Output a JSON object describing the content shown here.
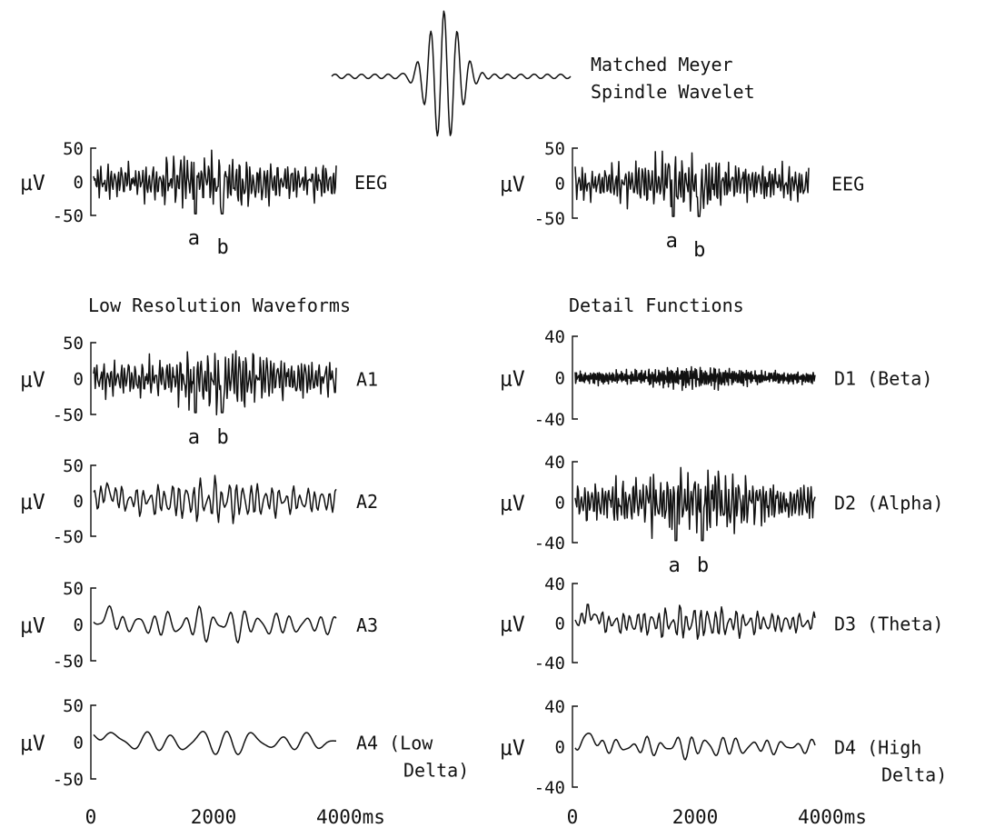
{
  "wavelet": {
    "caption_line1": "Matched Meyer",
    "caption_line2": "Spindle Wavelet"
  },
  "section_titles": {
    "left": "Low Resolution Waveforms",
    "right": "Detail Functions"
  },
  "unit_label": "μV",
  "marker_labels": [
    "a",
    "b"
  ],
  "x_axis": {
    "unit": "ms",
    "ticks": [
      "0",
      "2000",
      "4000ms"
    ],
    "range": [
      0,
      4000
    ]
  },
  "chart_data": {
    "type": "line",
    "x_range_ms": [
      0,
      4000
    ],
    "panels": [
      {
        "id": "eeg-left",
        "label": "EEG",
        "y_ticks": [
          "50",
          "0",
          "-50"
        ],
        "ylim": [
          -50,
          50
        ],
        "markers": [
          "a",
          "b"
        ],
        "frequency_level": "raw",
        "amplitude_uV": 55
      },
      {
        "id": "eeg-right",
        "label": "EEG",
        "y_ticks": [
          "50",
          "0",
          "-50"
        ],
        "ylim": [
          -50,
          50
        ],
        "markers": [
          "a",
          "b"
        ],
        "frequency_level": "raw",
        "amplitude_uV": 55
      },
      {
        "id": "A1",
        "label": "A1",
        "label_line2": "",
        "y_ticks": [
          "50",
          "0",
          "-50"
        ],
        "ylim": [
          -50,
          50
        ],
        "markers": [
          "a",
          "b"
        ],
        "frequency_level": "high",
        "amplitude_uV": 50
      },
      {
        "id": "A2",
        "label": "A2",
        "label_line2": "",
        "y_ticks": [
          "50",
          "0",
          "-50"
        ],
        "ylim": [
          -50,
          50
        ],
        "markers": [],
        "frequency_level": "medium",
        "amplitude_uV": 40
      },
      {
        "id": "A3",
        "label": "A3",
        "label_line2": "",
        "y_ticks": [
          "50",
          "0",
          "-50"
        ],
        "ylim": [
          -50,
          50
        ],
        "markers": [],
        "frequency_level": "low",
        "amplitude_uV": 30
      },
      {
        "id": "A4",
        "label": "A4 (Low",
        "label_line2": "Delta)",
        "y_ticks": [
          "50",
          "0",
          "-50"
        ],
        "ylim": [
          -50,
          50
        ],
        "markers": [],
        "frequency_level": "very-low",
        "amplitude_uV": 25
      },
      {
        "id": "D1",
        "label": "D1 (Beta)",
        "label_line2": "",
        "y_ticks": [
          "40",
          "0",
          "-40"
        ],
        "ylim": [
          -40,
          40
        ],
        "markers": [],
        "frequency_level": "very-high",
        "amplitude_uV": 12
      },
      {
        "id": "D2",
        "label": "D2 (Alpha)",
        "label_line2": "",
        "y_ticks": [
          "40",
          "0",
          "-40"
        ],
        "ylim": [
          -40,
          40
        ],
        "markers": [
          "a",
          "b"
        ],
        "frequency_level": "high",
        "amplitude_uV": 40
      },
      {
        "id": "D3",
        "label": "D3 (Theta)",
        "label_line2": "",
        "y_ticks": [
          "40",
          "0",
          "-40"
        ],
        "ylim": [
          -40,
          40
        ],
        "markers": [],
        "frequency_level": "medium",
        "amplitude_uV": 22
      },
      {
        "id": "D4",
        "label": "D4 (High",
        "label_line2": "Delta)",
        "y_ticks": [
          "40",
          "0",
          "-40"
        ],
        "ylim": [
          -40,
          40
        ],
        "markers": [],
        "frequency_level": "low",
        "amplitude_uV": 15
      }
    ]
  }
}
